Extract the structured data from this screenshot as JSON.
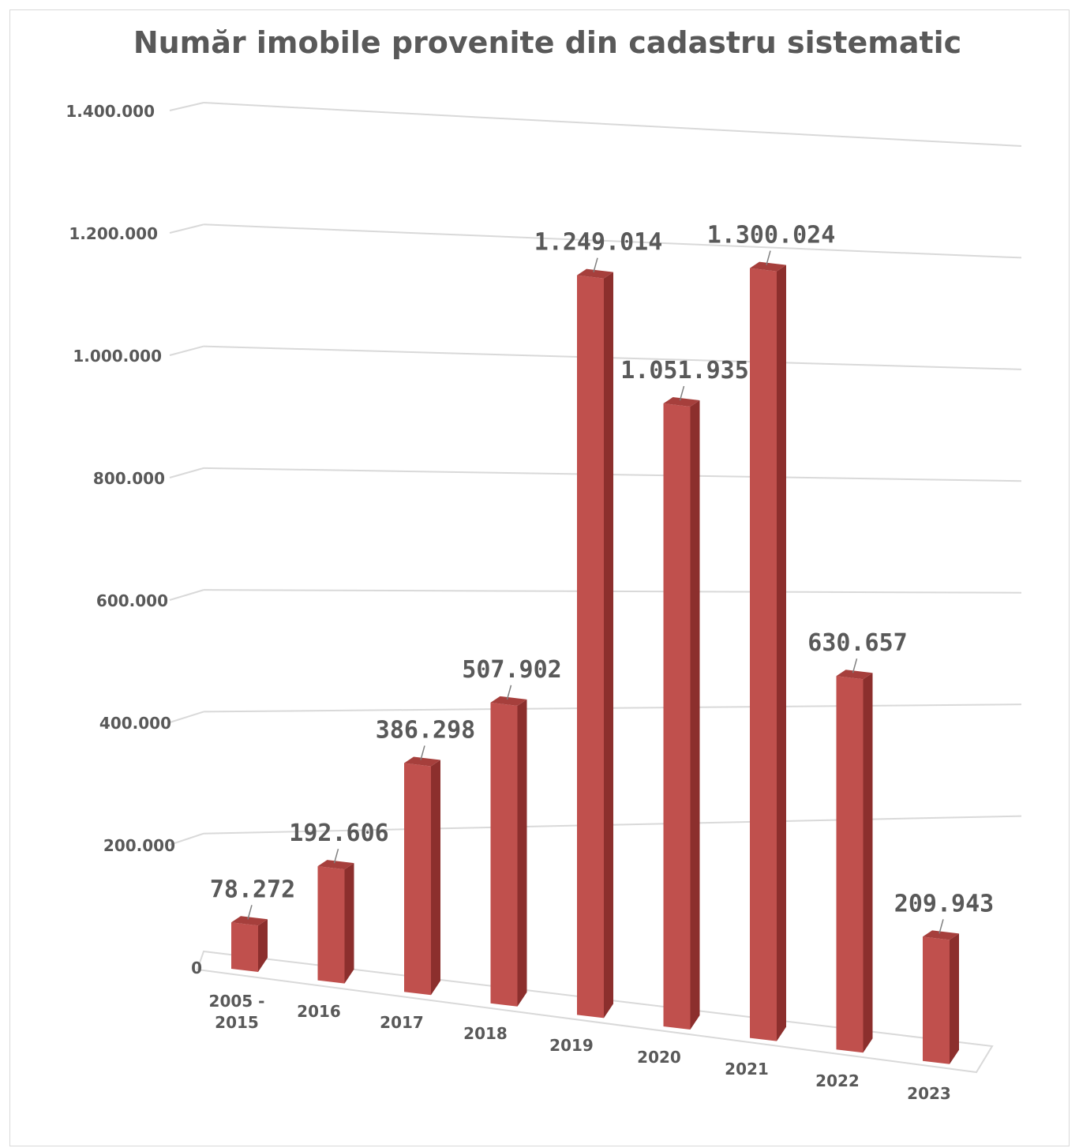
{
  "chart_data": {
    "type": "bar",
    "title": "Număr imobile provenite din cadastru sistematic",
    "xlabel": "",
    "ylabel": "",
    "categories": [
      "2005 - 2015",
      "2016",
      "2017",
      "2018",
      "2019",
      "2020",
      "2021",
      "2022",
      "2023"
    ],
    "values": [
      78272,
      192606,
      386298,
      507902,
      1249014,
      1051935,
      1300024,
      630657,
      209943
    ],
    "value_labels": [
      "78.272",
      "192.606",
      "386.298",
      "507.902",
      "1.249.014",
      "1.051.935",
      "1.300.024",
      "630.657",
      "209.943"
    ],
    "ylim": [
      0,
      1400000
    ],
    "yticks": [
      0,
      200000,
      400000,
      600000,
      800000,
      1000000,
      1200000,
      1400000
    ],
    "ytick_labels": [
      "0",
      "200.000",
      "400.000",
      "600.000",
      "800.000",
      "1.000.000",
      "1.200.000",
      "1.400.000"
    ],
    "grid": true,
    "style": "3d-column",
    "bar_color": "#c0504d"
  }
}
